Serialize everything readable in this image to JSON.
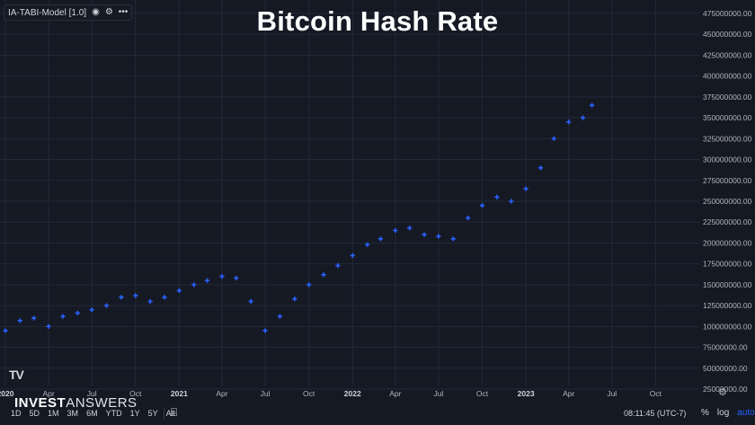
{
  "legend": {
    "label": "IA-TABI-Model [1.0]",
    "icons": [
      "eye-icon",
      "settings-icon",
      "more-icon"
    ]
  },
  "range_buttons": [
    "1D",
    "5D",
    "1M",
    "3M",
    "6M",
    "YTD",
    "1Y",
    "5Y",
    "All"
  ],
  "clock": "08:11:45 (UTC-7)",
  "scale_options": {
    "percent": "%",
    "log": "log",
    "auto": "auto"
  },
  "watermark": {
    "bold": "INVEST",
    "thin": "ANSWERS"
  },
  "tv_logo": "TV",
  "colors": {
    "background": "#151924",
    "grid": "#232837",
    "series": "#2962ff",
    "title": "#ffffff"
  },
  "chart_data": {
    "type": "scatter",
    "title": "Bitcoin Hash Rate",
    "marker": "plus",
    "x_axis": {
      "ticks": [
        "2020",
        "Apr",
        "Jul",
        "Oct",
        "2021",
        "Apr",
        "Jul",
        "Oct",
        "2022",
        "Apr",
        "Jul",
        "Oct",
        "2023",
        "Apr",
        "Jul",
        "Oct"
      ],
      "bold_ticks": [
        "2020",
        "2021",
        "2022",
        "2023"
      ],
      "range": [
        "2020-01-01",
        "2023-12-31"
      ]
    },
    "y_axis": {
      "ticks": [
        "25000000.00",
        "50000000.00",
        "75000000.00",
        "100000000.00",
        "125000000.00",
        "150000000.00",
        "175000000.00",
        "200000000.00",
        "225000000.00",
        "250000000.00",
        "275000000.00",
        "300000000.00",
        "325000000.00",
        "350000000.00",
        "375000000.00",
        "400000000.00",
        "425000000.00",
        "450000000.00",
        "475000000.00"
      ],
      "range": [
        25000000,
        475000000
      ]
    },
    "series": [
      {
        "points": [
          [
            "2020-01-01",
            95000000
          ],
          [
            "2020-02-01",
            107000000
          ],
          [
            "2020-03-01",
            110000000
          ],
          [
            "2020-04-01",
            100000000
          ],
          [
            "2020-05-01",
            112000000
          ],
          [
            "2020-06-01",
            116000000
          ],
          [
            "2020-07-01",
            120000000
          ],
          [
            "2020-08-01",
            125000000
          ],
          [
            "2020-09-01",
            135000000
          ],
          [
            "2020-10-01",
            137000000
          ],
          [
            "2020-11-01",
            130000000
          ],
          [
            "2020-12-01",
            135000000
          ],
          [
            "2021-01-01",
            143000000
          ],
          [
            "2021-02-01",
            150000000
          ],
          [
            "2021-03-01",
            155000000
          ],
          [
            "2021-04-01",
            160000000
          ],
          [
            "2021-05-01",
            158000000
          ],
          [
            "2021-06-01",
            130000000
          ],
          [
            "2021-07-01",
            95000000
          ],
          [
            "2021-08-01",
            112000000
          ],
          [
            "2021-09-01",
            133000000
          ],
          [
            "2021-10-01",
            150000000
          ],
          [
            "2021-11-01",
            162000000
          ],
          [
            "2021-12-01",
            173000000
          ],
          [
            "2022-01-01",
            185000000
          ],
          [
            "2022-02-01",
            198000000
          ],
          [
            "2022-03-01",
            205000000
          ],
          [
            "2022-04-01",
            215000000
          ],
          [
            "2022-05-01",
            218000000
          ],
          [
            "2022-06-01",
            210000000
          ],
          [
            "2022-07-01",
            208000000
          ],
          [
            "2022-08-01",
            205000000
          ],
          [
            "2022-09-01",
            230000000
          ],
          [
            "2022-10-01",
            245000000
          ],
          [
            "2022-11-01",
            255000000
          ],
          [
            "2022-12-01",
            250000000
          ],
          [
            "2023-01-01",
            265000000
          ],
          [
            "2023-02-01",
            290000000
          ],
          [
            "2023-03-01",
            325000000
          ],
          [
            "2023-04-01",
            345000000
          ],
          [
            "2023-05-01",
            350000000
          ],
          [
            "2023-05-20",
            365000000
          ]
        ],
        "color": "#2962ff"
      }
    ]
  }
}
